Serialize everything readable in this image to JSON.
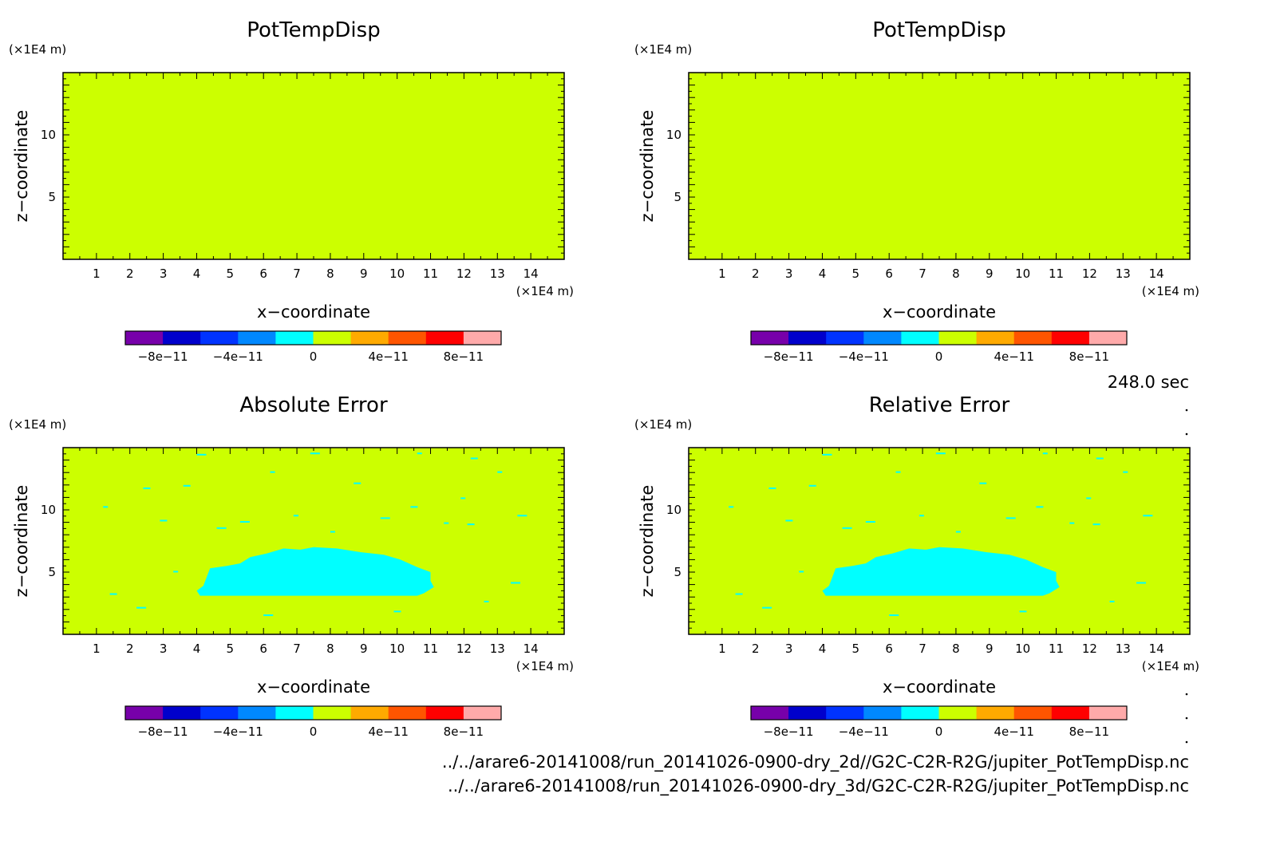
{
  "panels": [
    {
      "title": "PotTempDisp",
      "error_field": false
    },
    {
      "title": "PotTempDisp",
      "error_field": false
    },
    {
      "title": "Absolute Error",
      "error_field": true
    },
    {
      "title": "Relative Error",
      "error_field": true
    }
  ],
  "axes": {
    "xlabel": "x−coordinate",
    "ylabel": "z−coordinate",
    "x_unit": "(×1E4 m)",
    "y_unit": "(×1E4 m)",
    "xlim": [
      0,
      15
    ],
    "ylim": [
      0,
      15
    ],
    "x_ticks": [
      "1",
      "2",
      "3",
      "4",
      "5",
      "6",
      "7",
      "8",
      "9",
      "10",
      "11",
      "12",
      "13",
      "14"
    ],
    "y_ticks": [
      "5",
      "10"
    ]
  },
  "colorbar": {
    "colors": [
      "#7700aa",
      "#0000cc",
      "#0033ff",
      "#0088ff",
      "#00ffff",
      "#ccff00",
      "#ffaa00",
      "#ff5500",
      "#ff0000",
      "#ffaaaa"
    ],
    "labels": [
      "−8e−11",
      "−4e−11",
      "0",
      "4e−11",
      "8e−11"
    ]
  },
  "field_colors": {
    "background": "#ccff00",
    "anomaly": "#00ffff"
  },
  "time_label": "248.0 sec",
  "files": [
    "../../arare6-20141008/run_20141026-0900-dry_2d//G2C-C2R-R2G/jupiter_PotTempDisp.nc",
    "../../arare6-20141008/run_20141026-0900-dry_3d/G2C-C2R-R2G/jupiter_PotTempDisp.nc"
  ],
  "chart_data": [
    {
      "type": "heatmap",
      "title": "PotTempDisp",
      "xlabel": "x−coordinate",
      "ylabel": "z−coordinate",
      "xlim": [
        0,
        15
      ],
      "ylim": [
        0,
        15
      ],
      "field": "uniform value in 0 to 4e-11 band"
    },
    {
      "type": "heatmap",
      "title": "PotTempDisp",
      "xlabel": "x−coordinate",
      "ylabel": "z−coordinate",
      "xlim": [
        0,
        15
      ],
      "ylim": [
        0,
        15
      ],
      "field": "uniform value in 0 to 4e-11 band"
    },
    {
      "type": "heatmap",
      "title": "Absolute Error",
      "xlabel": "x−coordinate",
      "ylabel": "z−coordinate",
      "xlim": [
        0,
        15
      ],
      "ylim": [
        0,
        15
      ],
      "field": "mostly 0 to 4e-11 band; region of -2e-11 to 0 band for x 4 to 11, z 3 to 7"
    },
    {
      "type": "heatmap",
      "title": "Relative Error",
      "xlabel": "x−coordinate",
      "ylabel": "z−coordinate",
      "xlim": [
        0,
        15
      ],
      "ylim": [
        0,
        15
      ],
      "field": "mostly 0 to 4e-11 band; region of -2e-11 to 0 band for x 4 to 11, z 3 to 7"
    }
  ]
}
